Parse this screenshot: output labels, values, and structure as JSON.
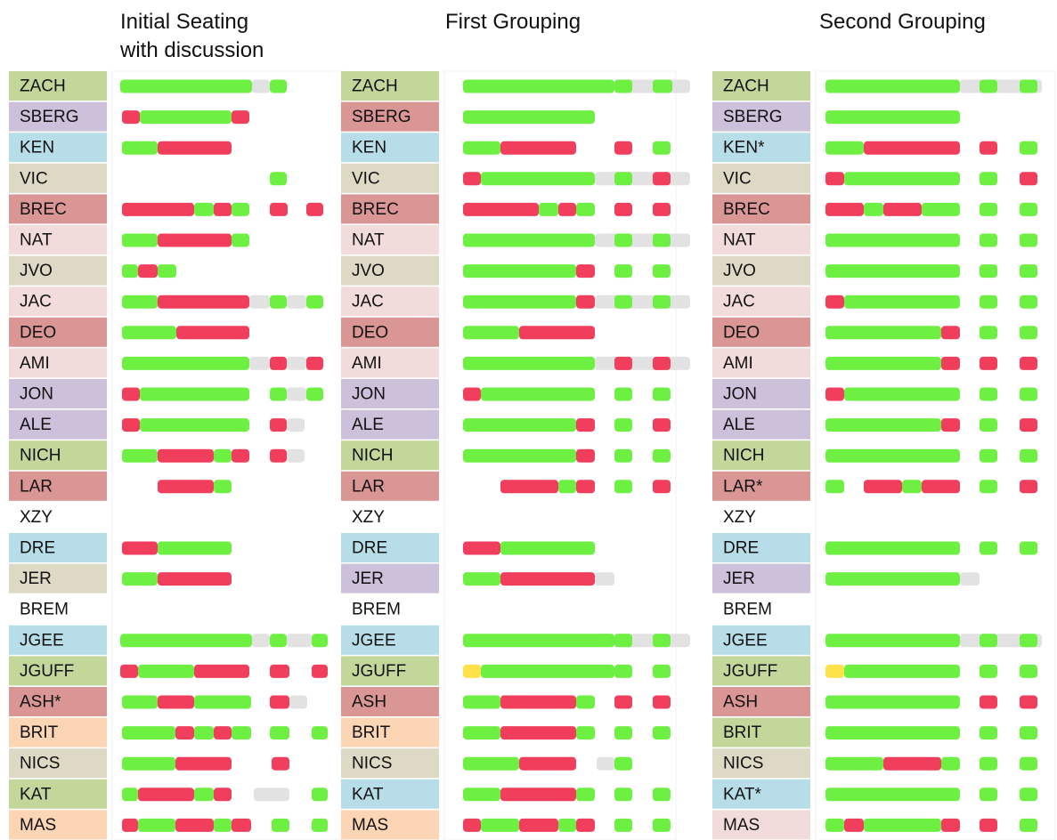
{
  "panels": [
    {
      "title": [
        "Initial Seating",
        "with discussion"
      ],
      "rows": [
        {
          "label": "ZACH",
          "color": "#c4d79b"
        },
        {
          "label": "SBERG",
          "color": "#ccc0da"
        },
        {
          "label": "KEN",
          "color": "#b7dde8"
        },
        {
          "label": "VIC",
          "color": "#ddd9c4"
        },
        {
          "label": "BREC",
          "color": "#da9694"
        },
        {
          "label": "NAT",
          "color": "#f2dcdb"
        },
        {
          "label": "JVO",
          "color": "#ddd9c4"
        },
        {
          "label": "JAC",
          "color": "#f2dcdb"
        },
        {
          "label": "DEO",
          "color": "#da9694"
        },
        {
          "label": "AMI",
          "color": "#f2dcdb"
        },
        {
          "label": "JON",
          "color": "#ccc0da"
        },
        {
          "label": "ALE",
          "color": "#ccc0da"
        },
        {
          "label": "NICH",
          "color": "#c4d79b"
        },
        {
          "label": "LAR",
          "color": "#da9694"
        },
        {
          "label": "XZY",
          "color": "#ffffff"
        },
        {
          "label": "DRE",
          "color": "#b7dde8"
        },
        {
          "label": "JER",
          "color": "#ddd9c4"
        },
        {
          "label": "BREM",
          "color": "#ffffff"
        },
        {
          "label": "JGEE",
          "color": "#b7dde8"
        },
        {
          "label": "JGUFF",
          "color": "#c4d79b"
        },
        {
          "label": "ASH*",
          "color": "#da9694"
        },
        {
          "label": "BRIT",
          "color": "#fcd5b4"
        },
        {
          "label": "NICS",
          "color": "#ddd9c4"
        },
        {
          "label": "KAT",
          "color": "#c4d79b"
        },
        {
          "label": "MAS",
          "color": "#fcd5b4"
        }
      ]
    },
    {
      "title": [
        "First Grouping"
      ],
      "rows": [
        {
          "label": "ZACH",
          "color": "#c4d79b"
        },
        {
          "label": "SBERG",
          "color": "#da9694"
        },
        {
          "label": "KEN",
          "color": "#b7dde8"
        },
        {
          "label": "VIC",
          "color": "#ddd9c4"
        },
        {
          "label": "BREC",
          "color": "#da9694"
        },
        {
          "label": "NAT",
          "color": "#f2dcdb"
        },
        {
          "label": "JVO",
          "color": "#ddd9c4"
        },
        {
          "label": "JAC",
          "color": "#f2dcdb"
        },
        {
          "label": "DEO",
          "color": "#da9694"
        },
        {
          "label": "AMI",
          "color": "#f2dcdb"
        },
        {
          "label": "JON",
          "color": "#ccc0da"
        },
        {
          "label": "ALE",
          "color": "#ccc0da"
        },
        {
          "label": "NICH",
          "color": "#c4d79b"
        },
        {
          "label": "LAR",
          "color": "#da9694"
        },
        {
          "label": "XZY",
          "color": "#ffffff"
        },
        {
          "label": "DRE",
          "color": "#b7dde8"
        },
        {
          "label": "JER",
          "color": "#ccc0da"
        },
        {
          "label": "BREM",
          "color": "#ffffff"
        },
        {
          "label": "JGEE",
          "color": "#b7dde8"
        },
        {
          "label": "JGUFF",
          "color": "#c4d79b"
        },
        {
          "label": "ASH",
          "color": "#da9694"
        },
        {
          "label": "BRIT",
          "color": "#fcd5b4"
        },
        {
          "label": "NICS",
          "color": "#ddd9c4"
        },
        {
          "label": "KAT",
          "color": "#b7dde8"
        },
        {
          "label": "MAS",
          "color": "#fcd5b4"
        }
      ]
    },
    {
      "title": [
        "Second Grouping"
      ],
      "rows": [
        {
          "label": "ZACH",
          "color": "#c4d79b"
        },
        {
          "label": "SBERG",
          "color": "#ccc0da"
        },
        {
          "label": "KEN*",
          "color": "#b7dde8"
        },
        {
          "label": "VIC",
          "color": "#ddd9c4"
        },
        {
          "label": "BREC",
          "color": "#da9694"
        },
        {
          "label": "NAT",
          "color": "#f2dcdb"
        },
        {
          "label": "JVO",
          "color": "#ddd9c4"
        },
        {
          "label": "JAC",
          "color": "#f2dcdb"
        },
        {
          "label": "DEO",
          "color": "#da9694"
        },
        {
          "label": "AMI",
          "color": "#f2dcdb"
        },
        {
          "label": "JON",
          "color": "#ccc0da"
        },
        {
          "label": "ALE",
          "color": "#ccc0da"
        },
        {
          "label": "NICH",
          "color": "#c4d79b"
        },
        {
          "label": "LAR*",
          "color": "#da9694"
        },
        {
          "label": "XZY",
          "color": "#ffffff"
        },
        {
          "label": "DRE",
          "color": "#b7dde8"
        },
        {
          "label": "JER",
          "color": "#ccc0da"
        },
        {
          "label": "BREM",
          "color": "#ffffff"
        },
        {
          "label": "JGEE",
          "color": "#b7dde8"
        },
        {
          "label": "JGUFF",
          "color": "#c4d79b"
        },
        {
          "label": "ASH",
          "color": "#da9694"
        },
        {
          "label": "BRIT",
          "color": "#c4d79b"
        },
        {
          "label": "NICS",
          "color": "#ddd9c4"
        },
        {
          "label": "KAT*",
          "color": "#b7dde8"
        },
        {
          "label": "MAS",
          "color": "#f2dcdb"
        }
      ]
    }
  ]
}
